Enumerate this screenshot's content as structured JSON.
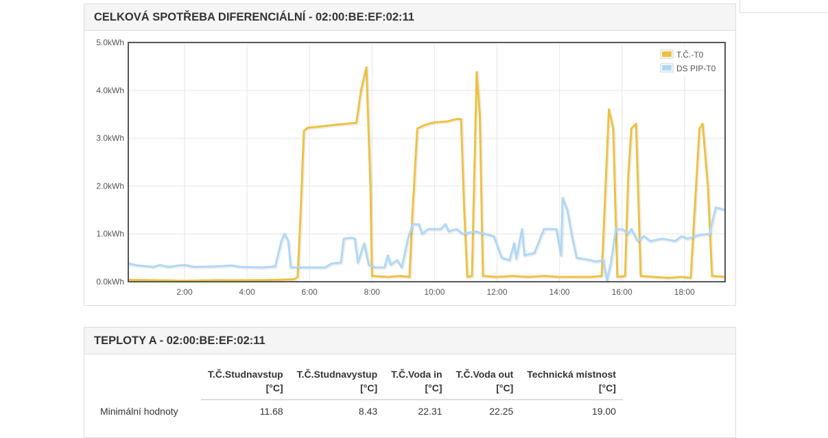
{
  "panel1": {
    "title": "CELKOVÁ SPOTŘEBA DIFERENCIÁLNÍ - 02:00:BE:EF:02:11"
  },
  "panel2": {
    "title": "TEPLOTY A - 02:00:BE:EF:02:11"
  },
  "table": {
    "headers": [
      {
        "line1": "T.Č.Studnavstup",
        "line2": "[°C]"
      },
      {
        "line1": "T.Č.Studnavystup",
        "line2": "[°C]"
      },
      {
        "line1": "T.Č.Voda in",
        "line2": "[°C]"
      },
      {
        "line1": "T.Č.Voda out",
        "line2": "[°C]"
      },
      {
        "line1": "Technická místnost",
        "line2": "[°C]"
      }
    ],
    "rows": [
      {
        "label": "Minimální hodnoty",
        "values": [
          "11.68",
          "8.43",
          "22.31",
          "22.25",
          "19.00"
        ]
      }
    ]
  },
  "chart_data": {
    "type": "line",
    "unit": "kWh",
    "xlim": [
      0.2,
      19.3
    ],
    "ylim": [
      0,
      5
    ],
    "x_ticks": [
      2,
      4,
      6,
      8,
      10,
      12,
      14,
      16,
      18
    ],
    "x_tick_labels": [
      "2:00",
      "4:00",
      "6:00",
      "8:00",
      "10:00",
      "12:00",
      "14:00",
      "16:00",
      "18:00"
    ],
    "y_ticks": [
      0,
      1,
      2,
      3,
      4,
      5
    ],
    "y_tick_labels": [
      "0.0kWh",
      "1.0kWh",
      "2.0kWh",
      "3.0kWh",
      "4.0kWh",
      "5.0kWh"
    ],
    "grid": true,
    "legend_position": "top-right",
    "series": [
      {
        "name": "T.Č.-T0",
        "color": "#edc240",
        "points": [
          [
            0.2,
            0.04
          ],
          [
            1.0,
            0.03
          ],
          [
            2.0,
            0.02
          ],
          [
            3.0,
            0.03
          ],
          [
            4.0,
            0.03
          ],
          [
            5.0,
            0.04
          ],
          [
            5.5,
            0.05
          ],
          [
            5.62,
            0.1
          ],
          [
            5.72,
            1.5
          ],
          [
            5.82,
            3.15
          ],
          [
            5.95,
            3.22
          ],
          [
            6.3,
            3.24
          ],
          [
            6.8,
            3.28
          ],
          [
            7.3,
            3.31
          ],
          [
            7.5,
            3.32
          ],
          [
            7.65,
            4.0
          ],
          [
            7.82,
            4.48
          ],
          [
            7.95,
            2.0
          ],
          [
            8.0,
            0.12
          ],
          [
            8.5,
            0.1
          ],
          [
            8.9,
            0.12
          ],
          [
            9.2,
            0.1
          ],
          [
            9.3,
            1.5
          ],
          [
            9.45,
            3.2
          ],
          [
            9.7,
            3.28
          ],
          [
            10.0,
            3.33
          ],
          [
            10.4,
            3.35
          ],
          [
            10.7,
            3.4
          ],
          [
            10.85,
            3.4
          ],
          [
            10.95,
            1.5
          ],
          [
            11.05,
            0.1
          ],
          [
            11.2,
            0.12
          ],
          [
            11.35,
            4.38
          ],
          [
            11.45,
            3.5
          ],
          [
            11.55,
            0.12
          ],
          [
            12.0,
            0.1
          ],
          [
            12.5,
            0.12
          ],
          [
            13.0,
            0.1
          ],
          [
            13.5,
            0.12
          ],
          [
            14.0,
            0.1
          ],
          [
            14.5,
            0.1
          ],
          [
            15.0,
            0.1
          ],
          [
            15.35,
            0.12
          ],
          [
            15.58,
            3.6
          ],
          [
            15.72,
            3.2
          ],
          [
            15.85,
            0.1
          ],
          [
            16.1,
            0.12
          ],
          [
            16.2,
            2.2
          ],
          [
            16.3,
            3.2
          ],
          [
            16.45,
            3.3
          ],
          [
            16.6,
            0.12
          ],
          [
            17.0,
            0.1
          ],
          [
            17.5,
            0.08
          ],
          [
            17.9,
            0.1
          ],
          [
            18.2,
            0.08
          ],
          [
            18.48,
            3.2
          ],
          [
            18.58,
            3.3
          ],
          [
            18.75,
            2.0
          ],
          [
            18.88,
            0.12
          ],
          [
            19.3,
            0.1
          ]
        ]
      },
      {
        "name": "DS PIP-T0",
        "color": "#afd8f8",
        "points": [
          [
            0.2,
            0.38
          ],
          [
            0.5,
            0.34
          ],
          [
            1.0,
            0.31
          ],
          [
            1.2,
            0.35
          ],
          [
            1.5,
            0.31
          ],
          [
            1.8,
            0.34
          ],
          [
            2.0,
            0.35
          ],
          [
            2.3,
            0.31
          ],
          [
            3.0,
            0.32
          ],
          [
            3.5,
            0.34
          ],
          [
            3.8,
            0.31
          ],
          [
            4.5,
            0.3
          ],
          [
            4.9,
            0.32
          ],
          [
            5.1,
            0.85
          ],
          [
            5.2,
            1.0
          ],
          [
            5.32,
            0.85
          ],
          [
            5.4,
            0.3
          ],
          [
            6.0,
            0.3
          ],
          [
            6.5,
            0.3
          ],
          [
            6.7,
            0.38
          ],
          [
            7.0,
            0.4
          ],
          [
            7.1,
            0.9
          ],
          [
            7.35,
            0.92
          ],
          [
            7.45,
            0.9
          ],
          [
            7.55,
            0.4
          ],
          [
            7.75,
            0.8
          ],
          [
            7.9,
            0.35
          ],
          [
            8.1,
            0.3
          ],
          [
            8.4,
            0.3
          ],
          [
            8.5,
            0.55
          ],
          [
            8.6,
            0.35
          ],
          [
            8.8,
            0.45
          ],
          [
            8.95,
            0.3
          ],
          [
            9.15,
            0.9
          ],
          [
            9.3,
            1.2
          ],
          [
            9.5,
            1.2
          ],
          [
            9.6,
            1.0
          ],
          [
            9.8,
            1.1
          ],
          [
            10.2,
            1.1
          ],
          [
            10.35,
            1.2
          ],
          [
            10.45,
            1.05
          ],
          [
            10.7,
            1.1
          ],
          [
            10.9,
            1.0
          ],
          [
            11.3,
            1.05
          ],
          [
            11.6,
            1.0
          ],
          [
            11.9,
            0.95
          ],
          [
            12.15,
            0.5
          ],
          [
            12.4,
            0.45
          ],
          [
            12.55,
            0.8
          ],
          [
            12.62,
            0.48
          ],
          [
            12.8,
            1.1
          ],
          [
            12.88,
            0.55
          ],
          [
            13.2,
            0.6
          ],
          [
            13.5,
            1.1
          ],
          [
            13.9,
            1.1
          ],
          [
            14.05,
            0.55
          ],
          [
            14.1,
            1.75
          ],
          [
            14.25,
            1.5
          ],
          [
            14.4,
            0.95
          ],
          [
            14.55,
            0.5
          ],
          [
            15.0,
            0.45
          ],
          [
            15.15,
            0.42
          ],
          [
            15.4,
            0.45
          ],
          [
            15.52,
            0.02
          ],
          [
            15.65,
            0.4
          ],
          [
            15.8,
            1.1
          ],
          [
            16.0,
            1.1
          ],
          [
            16.2,
            1.0
          ],
          [
            16.3,
            1.1
          ],
          [
            16.5,
            0.85
          ],
          [
            16.7,
            0.95
          ],
          [
            16.9,
            0.85
          ],
          [
            17.3,
            0.9
          ],
          [
            17.7,
            0.85
          ],
          [
            17.9,
            0.95
          ],
          [
            18.1,
            0.9
          ],
          [
            18.5,
            0.98
          ],
          [
            18.8,
            1.0
          ],
          [
            19.0,
            1.55
          ],
          [
            19.3,
            1.5
          ]
        ]
      }
    ]
  }
}
